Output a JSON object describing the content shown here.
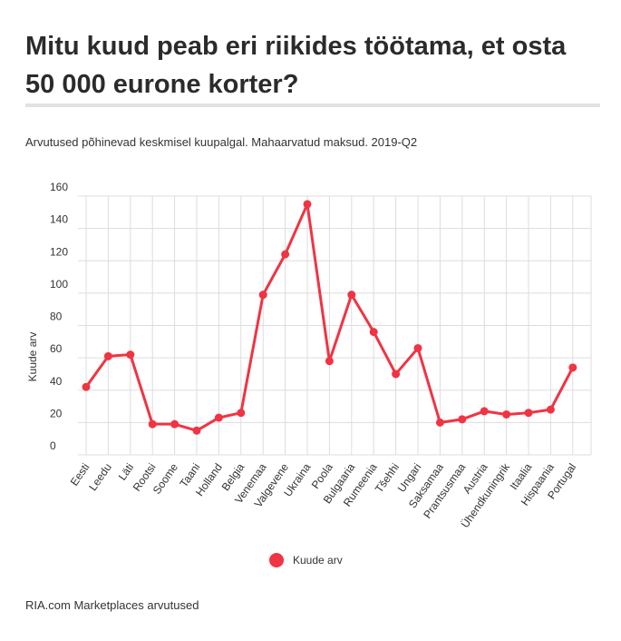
{
  "header": {
    "title": "Mitu kuud peab eri riikides töötama, et osta 50 000 eurone korter?",
    "subtitle": "Arvutused põhinevad keskmisel kuupalgal. Mahaarvatud maksud. 2019-Q2"
  },
  "footer": {
    "source": "RIA.com Marketplaces arvutused"
  },
  "chart_data": {
    "type": "line",
    "title": "",
    "xlabel": "",
    "ylabel": "Kuude arv",
    "ylim": [
      0,
      160
    ],
    "yticks": [
      0,
      20,
      40,
      60,
      80,
      100,
      120,
      140,
      160
    ],
    "grid": true,
    "legend_position": "bottom",
    "line_color": "#f03443",
    "categories": [
      "Eesti",
      "Leedu",
      "Läti",
      "Rootsi",
      "Soome",
      "Taani",
      "Holland",
      "Belgia",
      "Venemaa",
      "Valgevene",
      "Ukraina",
      "Poola",
      "Bulgaaria",
      "Rumeenia",
      "Tšehhi",
      "Ungari",
      "Saksamaa",
      "Prantsusmaa",
      "Austria",
      "Ühendkuningrik",
      "Itaalia",
      "Hispaania",
      "Portugal"
    ],
    "series": [
      {
        "name": "Kuude arv",
        "values": [
          42,
          61,
          62,
          19,
          19,
          15,
          23,
          26,
          99,
          124,
          155,
          58,
          99,
          76,
          50,
          66,
          20,
          22,
          27,
          25,
          26,
          28,
          54
        ]
      }
    ]
  }
}
